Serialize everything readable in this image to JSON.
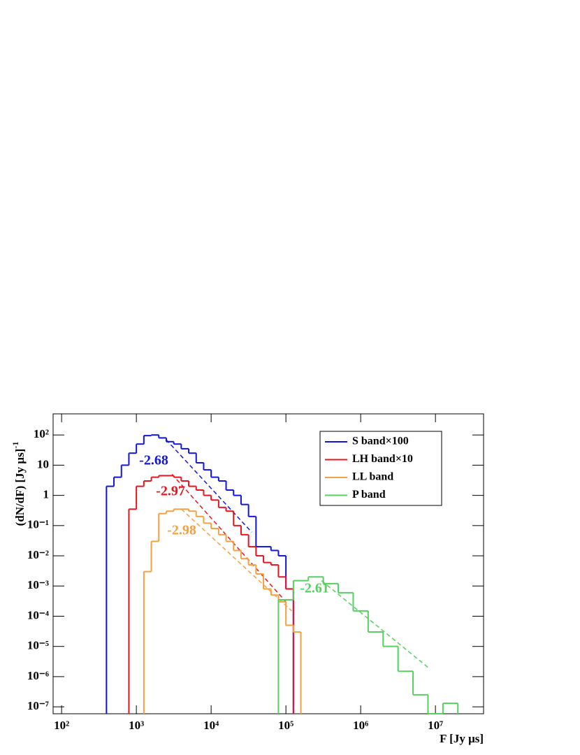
{
  "chart_data": {
    "type": "histogram",
    "x_label": "F [Jy  μs]",
    "y_label": "(dN/dF) [Jy  μs]",
    "y_label_exponent": "-1",
    "log_x": true,
    "log_y": true,
    "xlim": [
      77,
      44000000
    ],
    "ylim": [
      5.9e-08,
      500
    ],
    "xticks": [
      {
        "value": 100,
        "label": "10²"
      },
      {
        "value": 1000,
        "label": "10³"
      },
      {
        "value": 10000,
        "label": "10⁴"
      },
      {
        "value": 100000,
        "label": "10⁵"
      },
      {
        "value": 1000000,
        "label": "10⁶"
      },
      {
        "value": 10000000,
        "label": "10⁷"
      }
    ],
    "yticks": [
      {
        "value": 1e-07,
        "label": "10⁻⁷"
      },
      {
        "value": 1e-06,
        "label": "10⁻⁶"
      },
      {
        "value": 1e-05,
        "label": "10⁻⁵"
      },
      {
        "value": 0.0001,
        "label": "10⁻⁴"
      },
      {
        "value": 0.001,
        "label": "10⁻³"
      },
      {
        "value": 0.01,
        "label": "10⁻²"
      },
      {
        "value": 0.1,
        "label": "10⁻¹"
      },
      1,
      10,
      {
        "value": 100,
        "label": "10²"
      }
    ],
    "legend_position": "upper right",
    "series": [
      {
        "name": "S band×100",
        "color": "#1414e0",
        "slope_label": "-2.68",
        "bins": [
          398,
          501,
          631,
          794,
          1000,
          1259,
          1585,
          1995,
          2512,
          3162,
          3981,
          5012,
          6310,
          7943,
          10000,
          12589,
          15849,
          19953,
          25119,
          31623,
          39811,
          50119,
          63096,
          79433,
          100000,
          125893
        ],
        "values": [
          2,
          4,
          10,
          25,
          50,
          95,
          100,
          80,
          60,
          50,
          35,
          25,
          12,
          7,
          4,
          3,
          1.5,
          1,
          0.5,
          0.2,
          0.02,
          0.02,
          0.015,
          0.01,
          0.0008
        ],
        "fit_x": [
          2500,
          35000
        ],
        "fit_y": [
          70,
          0.06
        ]
      },
      {
        "name": "LH band×10",
        "color": "#e8141e",
        "slope_label": "-2.97",
        "bins": [
          794,
          1000,
          1259,
          1585,
          1995,
          2512,
          3162,
          3981,
          5012,
          6310,
          7943,
          10000,
          12589,
          15849,
          19953,
          25119,
          31623,
          39811,
          50119,
          63096,
          79433,
          100000,
          125893
        ],
        "values": [
          0.35,
          2,
          3,
          4,
          4.5,
          4.5,
          4,
          3,
          2,
          1.5,
          1,
          0.7,
          0.4,
          0.3,
          0.1,
          0.05,
          0.02,
          0.01,
          0.006,
          0.005,
          0.002,
          0.0008
        ],
        "fit_x": [
          3000,
          100000
        ],
        "fit_y": [
          5,
          0.0003
        ]
      },
      {
        "name": "LL band",
        "color": "#f5a040",
        "slope_label": "-2.98",
        "bins": [
          1259,
          1585,
          1995,
          2512,
          3162,
          3981,
          5012,
          6310,
          7943,
          10000,
          12589,
          15849,
          19953,
          25119,
          31623,
          39811,
          50119,
          63096,
          79433,
          100000,
          125893,
          158489
        ],
        "values": [
          0.003,
          0.03,
          0.25,
          0.3,
          0.35,
          0.35,
          0.3,
          0.2,
          0.12,
          0.08,
          0.05,
          0.03,
          0.015,
          0.008,
          0.005,
          0.0025,
          0.0008,
          0.0005,
          0.0003,
          5e-05,
          3e-05
        ],
        "fit_x": [
          4000,
          120000
        ],
        "fit_y": [
          0.35,
          0.00015
        ]
      },
      {
        "name": "P band",
        "color": "#55d060",
        "slope_label": "-2.61",
        "bins": [
          79433,
          125893,
          199526,
          316228,
          501187,
          794328,
          1258925,
          1995262,
          3162278,
          5011872,
          7943282,
          12589254,
          19952623
        ],
        "values": [
          0.00035,
          0.0015,
          0.002,
          0.0012,
          0.0006,
          0.00015,
          3e-05,
          1e-05,
          1.5e-06,
          2.5e-07,
          0,
          1.3e-07
        ],
        "fit_x": [
          300000,
          8000000
        ],
        "fit_y": [
          0.0015,
          2e-06
        ]
      }
    ]
  }
}
